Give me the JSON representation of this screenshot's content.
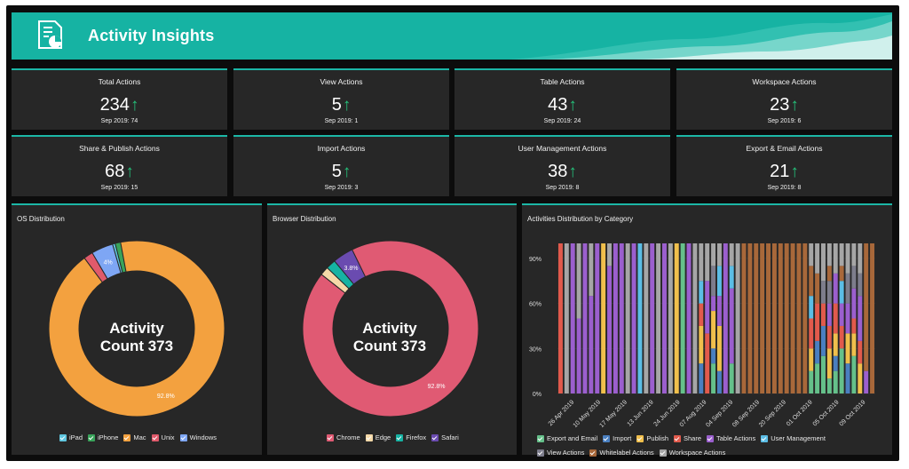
{
  "header": {
    "title": "Activity Insights"
  },
  "kpis": [
    {
      "title": "Total Actions",
      "value": "234",
      "sub": "Sep 2019: 74"
    },
    {
      "title": "View Actions",
      "value": "5",
      "sub": "Sep 2019: 1"
    },
    {
      "title": "Table Actions",
      "value": "43",
      "sub": "Sep 2019: 24"
    },
    {
      "title": "Workspace Actions",
      "value": "23",
      "sub": "Sep 2019: 6"
    },
    {
      "title": "Share & Publish Actions",
      "value": "68",
      "sub": "Sep 2019: 15"
    },
    {
      "title": "Import Actions",
      "value": "5",
      "sub": "Sep 2019: 3"
    },
    {
      "title": "User Management Actions",
      "value": "38",
      "sub": "Sep 2019: 8"
    },
    {
      "title": "Export & Email Actions",
      "value": "21",
      "sub": "Sep 2019: 8"
    }
  ],
  "os": {
    "title": "OS Distribution",
    "center_line1": "Activity",
    "center_line2": "Count 373",
    "label_big": "92.8%",
    "label_small": "4%"
  },
  "browser": {
    "title": "Browser Distribution",
    "center_line1": "Activity",
    "center_line2": "Count 373",
    "label_big": "92.8%",
    "label_small": "3.8%"
  },
  "activities": {
    "title": "Activities Distribution by Category"
  },
  "chart_data": [
    {
      "type": "pie",
      "title": "OS Distribution",
      "labels": [
        "iPad",
        "iPhone",
        "Mac",
        "Unix",
        "Windows"
      ],
      "values": [
        0.5,
        1.0,
        92.8,
        1.7,
        4.0
      ],
      "colors": [
        "#5fc6df",
        "#39a35a",
        "#f3a13f",
        "#e05a6b",
        "#7ea6f4"
      ]
    },
    {
      "type": "pie",
      "title": "Browser Distribution",
      "labels": [
        "Chrome",
        "Edge",
        "Firefox",
        "Safari"
      ],
      "values": [
        92.8,
        1.6,
        1.8,
        3.8
      ],
      "colors": [
        "#e05a73",
        "#f5d9a8",
        "#16b3a3",
        "#6a4bb0"
      ]
    },
    {
      "type": "bar",
      "title": "Activities Distribution by Category",
      "stacked": "percent",
      "ylim": [
        0,
        100
      ],
      "yticks": [
        "0%",
        "30%",
        "60%",
        "90%"
      ],
      "xticks": [
        "26 Apr 2019",
        "10 May 2019",
        "17 May 2019",
        "13 Jun 2019",
        "24 Jun 2019",
        "07 Aug 2019",
        "04 Sep 2019",
        "08 Sep 2019",
        "20 Sep 2019",
        "01 Oct 2019",
        "05 Oct 2019",
        "09 Oct 2019"
      ],
      "series": [
        {
          "name": "Export and Email",
          "color": "#65c08a"
        },
        {
          "name": "Import",
          "color": "#4a7fc0"
        },
        {
          "name": "Publish",
          "color": "#f0bf4c"
        },
        {
          "name": "Share",
          "color": "#e15a4c"
        },
        {
          "name": "Table Actions",
          "color": "#9b5fce"
        },
        {
          "name": "User Management",
          "color": "#5bbde5"
        },
        {
          "name": "View Actions",
          "color": "#7d7d8c"
        },
        {
          "name": "Whitelabel Actions",
          "color": "#a8683a"
        },
        {
          "name": "Workspace Actions",
          "color": "#a6a6a6"
        }
      ],
      "bars": [
        [
          0,
          0,
          0,
          100,
          0,
          0,
          0,
          0,
          0
        ],
        [
          0,
          0,
          0,
          0,
          0,
          0,
          0,
          0,
          100
        ],
        [
          0,
          0,
          0,
          0,
          100,
          0,
          0,
          0,
          0
        ],
        [
          0,
          0,
          0,
          0,
          50,
          0,
          0,
          0,
          50
        ],
        [
          0,
          0,
          0,
          0,
          100,
          0,
          0,
          0,
          0
        ],
        [
          0,
          0,
          0,
          0,
          65,
          0,
          0,
          0,
          35
        ],
        [
          0,
          0,
          0,
          0,
          100,
          0,
          0,
          0,
          0
        ],
        [
          0,
          0,
          100,
          0,
          0,
          0,
          0,
          0,
          0
        ],
        [
          0,
          0,
          0,
          0,
          85,
          0,
          0,
          0,
          15
        ],
        [
          0,
          0,
          0,
          0,
          100,
          0,
          0,
          0,
          0
        ],
        [
          0,
          0,
          0,
          0,
          100,
          0,
          0,
          0,
          0
        ],
        [
          0,
          0,
          0,
          0,
          0,
          0,
          0,
          0,
          100
        ],
        [
          0,
          0,
          0,
          0,
          100,
          0,
          0,
          0,
          0
        ],
        [
          0,
          0,
          0,
          0,
          0,
          100,
          0,
          0,
          0
        ],
        [
          0,
          0,
          0,
          0,
          0,
          0,
          0,
          0,
          100
        ],
        [
          0,
          0,
          0,
          0,
          100,
          0,
          0,
          0,
          0
        ],
        [
          0,
          0,
          0,
          0,
          0,
          0,
          0,
          0,
          100
        ],
        [
          0,
          0,
          0,
          0,
          100,
          0,
          0,
          0,
          0
        ],
        [
          0,
          0,
          0,
          0,
          0,
          0,
          0,
          0,
          100
        ],
        [
          0,
          0,
          100,
          0,
          0,
          0,
          0,
          0,
          0
        ],
        [
          100,
          0,
          0,
          0,
          0,
          0,
          0,
          0,
          0
        ],
        [
          0,
          0,
          0,
          0,
          100,
          0,
          0,
          0,
          0
        ],
        [
          0,
          0,
          0,
          0,
          0,
          0,
          0,
          0,
          100
        ],
        [
          0,
          20,
          25,
          15,
          0,
          15,
          0,
          0,
          25
        ],
        [
          0,
          0,
          0,
          40,
          35,
          0,
          0,
          0,
          25
        ],
        [
          20,
          10,
          25,
          0,
          10,
          0,
          20,
          0,
          15
        ],
        [
          0,
          15,
          30,
          0,
          20,
          20,
          0,
          0,
          15
        ],
        [
          0,
          0,
          0,
          0,
          100,
          0,
          0,
          0,
          0
        ],
        [
          20,
          0,
          0,
          0,
          50,
          15,
          0,
          0,
          15
        ],
        [
          0,
          0,
          0,
          0,
          0,
          0,
          0,
          0,
          100
        ],
        [
          0,
          0,
          0,
          0,
          0,
          0,
          0,
          100,
          0
        ],
        [
          0,
          0,
          0,
          0,
          0,
          0,
          0,
          100,
          0
        ],
        [
          0,
          0,
          0,
          0,
          0,
          0,
          0,
          100,
          0
        ],
        [
          0,
          0,
          0,
          0,
          0,
          0,
          0,
          100,
          0
        ],
        [
          0,
          0,
          0,
          0,
          0,
          0,
          0,
          100,
          0
        ],
        [
          0,
          0,
          0,
          0,
          0,
          0,
          0,
          100,
          0
        ],
        [
          0,
          0,
          0,
          0,
          0,
          0,
          0,
          100,
          0
        ],
        [
          0,
          0,
          0,
          0,
          0,
          0,
          0,
          100,
          0
        ],
        [
          0,
          0,
          0,
          0,
          0,
          0,
          0,
          100,
          0
        ],
        [
          0,
          0,
          0,
          0,
          0,
          0,
          0,
          100,
          0
        ],
        [
          0,
          0,
          0,
          0,
          0,
          0,
          0,
          100,
          0
        ],
        [
          15,
          0,
          15,
          20,
          0,
          15,
          0,
          20,
          15
        ],
        [
          20,
          15,
          0,
          25,
          0,
          0,
          0,
          20,
          20
        ],
        [
          25,
          20,
          0,
          15,
          0,
          0,
          15,
          0,
          25
        ],
        [
          10,
          0,
          20,
          15,
          15,
          0,
          15,
          10,
          15
        ],
        [
          15,
          10,
          15,
          20,
          20,
          0,
          0,
          0,
          20
        ],
        [
          30,
          0,
          0,
          15,
          15,
          15,
          0,
          10,
          15
        ],
        [
          0,
          20,
          20,
          0,
          20,
          0,
          20,
          0,
          20
        ],
        [
          25,
          0,
          15,
          10,
          20,
          0,
          15,
          0,
          15
        ],
        [
          0,
          0,
          20,
          15,
          30,
          0,
          15,
          0,
          20
        ],
        [
          0,
          0,
          0,
          0,
          15,
          0,
          0,
          85,
          0
        ],
        [
          0,
          0,
          0,
          0,
          0,
          0,
          0,
          100,
          0
        ]
      ]
    }
  ]
}
